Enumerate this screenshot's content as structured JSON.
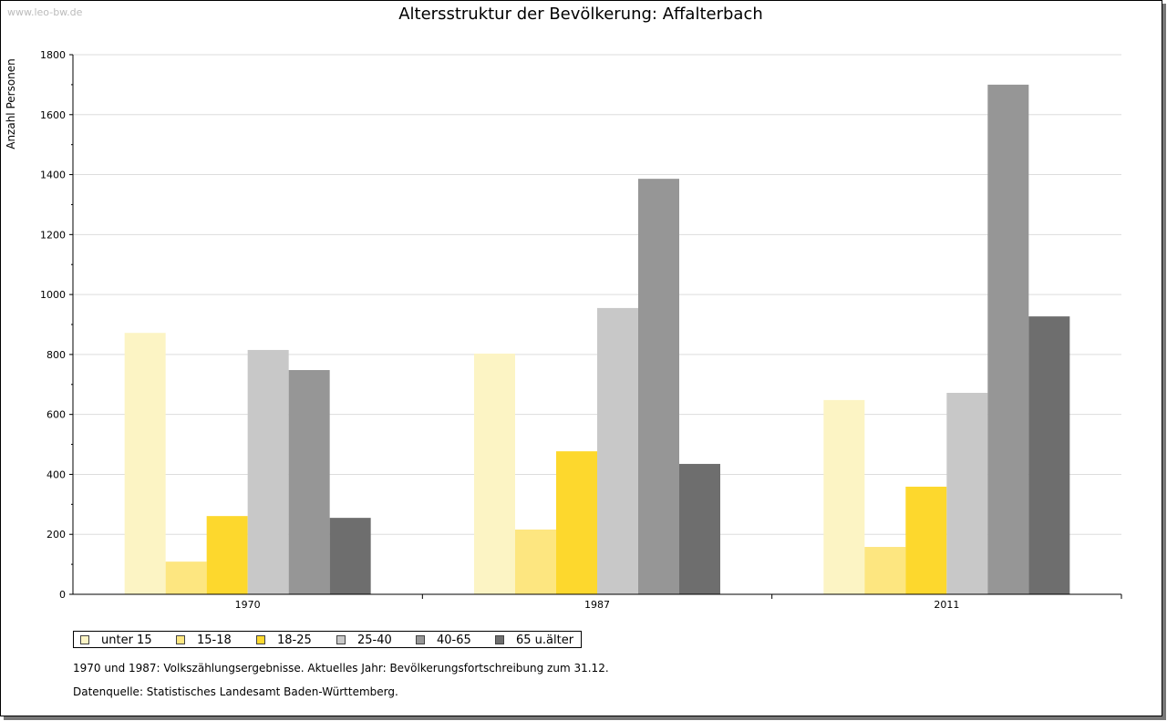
{
  "watermark": "www.leo-bw.de",
  "notes": [
    "1970 und 1987: Volkszählungsergebnisse. Aktuelles Jahr: Bevölkerungsfortschreibung zum 31.12.",
    "Datenquelle: Statistisches Landesamt Baden-Württemberg."
  ],
  "chart_data": {
    "type": "bar",
    "title": "Altersstruktur der Bevölkerung: Affalterbach",
    "xlabel": "",
    "ylabel": "Anzahl Personen",
    "ylim": [
      0,
      1800
    ],
    "yticks": [
      0,
      200,
      400,
      600,
      800,
      1000,
      1200,
      1400,
      1600,
      1800
    ],
    "grid": true,
    "legend": "bottom-left",
    "categories": [
      "1970",
      "1987",
      "2011"
    ],
    "series": [
      {
        "name": "unter 15",
        "color": "#fcf4c4",
        "values": [
          872,
          803,
          648
        ]
      },
      {
        "name": "15-18",
        "color": "#fde680",
        "values": [
          109,
          216,
          158
        ]
      },
      {
        "name": "18-25",
        "color": "#fdd82d",
        "values": [
          261,
          477,
          359
        ]
      },
      {
        "name": "25-40",
        "color": "#c8c8c8",
        "values": [
          815,
          955,
          672
        ]
      },
      {
        "name": "40-65",
        "color": "#969696",
        "values": [
          748,
          1386,
          1700
        ]
      },
      {
        "name": "65 u.älter",
        "color": "#6e6e6e",
        "values": [
          255,
          435,
          927
        ]
      }
    ]
  }
}
